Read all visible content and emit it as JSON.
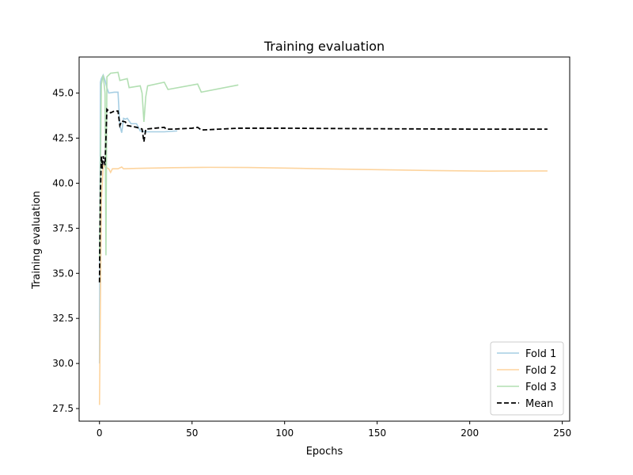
{
  "chart_data": {
    "type": "line",
    "title": "Training evaluation",
    "xlabel": "Epochs",
    "ylabel": "Training evaluation",
    "xlim": [
      -11,
      254
    ],
    "ylim": [
      26.8,
      47.0
    ],
    "xticks": [
      0,
      50,
      100,
      150,
      200,
      250
    ],
    "yticks": [
      27.5,
      30.0,
      32.5,
      35.0,
      37.5,
      40.0,
      42.5,
      45.0
    ],
    "grid": false,
    "legend_position": "lower-right",
    "series": [
      {
        "name": "Fold 1",
        "color": "#a6cee3",
        "dash": "",
        "points": [
          [
            0,
            30.0
          ],
          [
            0.5,
            45.6
          ],
          [
            1,
            45.8
          ],
          [
            2,
            46.0
          ],
          [
            3,
            45.7
          ],
          [
            4,
            45.3
          ],
          [
            5,
            45.0
          ],
          [
            8,
            45.05
          ],
          [
            10,
            45.05
          ],
          [
            11,
            43.2
          ],
          [
            12,
            42.8
          ],
          [
            13,
            43.6
          ],
          [
            14,
            43.55
          ],
          [
            15,
            43.6
          ],
          [
            17,
            43.3
          ],
          [
            20,
            43.3
          ],
          [
            22,
            42.9
          ],
          [
            25,
            42.85
          ],
          [
            30,
            42.85
          ],
          [
            35,
            42.85
          ],
          [
            42,
            42.9
          ]
        ]
      },
      {
        "name": "Fold 2",
        "color": "#fdd49e",
        "dash": "",
        "points": [
          [
            0,
            27.7
          ],
          [
            1,
            39.0
          ],
          [
            2,
            41.0
          ],
          [
            3,
            40.9
          ],
          [
            5,
            40.8
          ],
          [
            6,
            40.6
          ],
          [
            7,
            40.8
          ],
          [
            10,
            40.8
          ],
          [
            12,
            40.9
          ],
          [
            13,
            40.8
          ],
          [
            20,
            40.82
          ],
          [
            40,
            40.86
          ],
          [
            60,
            40.88
          ],
          [
            80,
            40.87
          ],
          [
            100,
            40.84
          ],
          [
            120,
            40.8
          ],
          [
            150,
            40.75
          ],
          [
            180,
            40.7
          ],
          [
            210,
            40.67
          ],
          [
            242,
            40.68
          ]
        ]
      },
      {
        "name": "Fold 3",
        "color": "#b2dfb2",
        "dash": "",
        "points": [
          [
            0,
            35.7
          ],
          [
            1,
            45.5
          ],
          [
            2,
            46.0
          ],
          [
            3,
            45.0
          ],
          [
            3.5,
            36.0
          ],
          [
            4,
            45.9
          ],
          [
            5,
            46.0
          ],
          [
            6,
            46.1
          ],
          [
            10,
            46.15
          ],
          [
            11,
            45.7
          ],
          [
            15,
            45.8
          ],
          [
            16,
            45.3
          ],
          [
            22,
            45.4
          ],
          [
            23,
            45.0
          ],
          [
            24,
            43.4
          ],
          [
            25,
            44.8
          ],
          [
            26,
            45.4
          ],
          [
            35,
            45.6
          ],
          [
            37,
            45.2
          ],
          [
            53,
            45.5
          ],
          [
            55,
            45.05
          ],
          [
            75,
            45.45
          ]
        ]
      },
      {
        "name": "Mean",
        "color": "#000000",
        "dash": "6,3",
        "points": [
          [
            0,
            34.5
          ],
          [
            0.5,
            39.5
          ],
          [
            1,
            41.5
          ],
          [
            1.5,
            40.8
          ],
          [
            2,
            41.5
          ],
          [
            3,
            41.0
          ],
          [
            4,
            44.1
          ],
          [
            5,
            44.0
          ],
          [
            6,
            43.9
          ],
          [
            8,
            44.0
          ],
          [
            10,
            44.0
          ],
          [
            11,
            43.2
          ],
          [
            12,
            43.45
          ],
          [
            14,
            43.4
          ],
          [
            15,
            43.2
          ],
          [
            20,
            43.1
          ],
          [
            23,
            43.0
          ],
          [
            24,
            42.3
          ],
          [
            25,
            43.0
          ],
          [
            30,
            43.05
          ],
          [
            35,
            43.1
          ],
          [
            36,
            43.0
          ],
          [
            40,
            43.0
          ],
          [
            50,
            43.05
          ],
          [
            53,
            43.1
          ],
          [
            55,
            42.95
          ],
          [
            75,
            43.05
          ],
          [
            100,
            43.05
          ],
          [
            150,
            43.02
          ],
          [
            200,
            43.0
          ],
          [
            242,
            43.0
          ]
        ]
      }
    ]
  }
}
